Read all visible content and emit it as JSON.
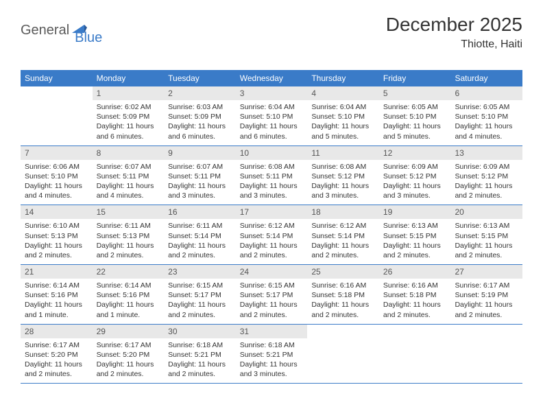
{
  "logo": {
    "text1": "General",
    "text2": "Blue"
  },
  "title": "December 2025",
  "location": "Thiotte, Haiti",
  "colors": {
    "header_bg": "#3a7bc8",
    "header_text": "#ffffff",
    "daynum_bg": "#e8e8e8",
    "daynum_text": "#555555",
    "body_text": "#333333",
    "rule": "#3a7bc8",
    "logo_gray": "#5a5a5a",
    "logo_blue": "#3a7bc8"
  },
  "day_names": [
    "Sunday",
    "Monday",
    "Tuesday",
    "Wednesday",
    "Thursday",
    "Friday",
    "Saturday"
  ],
  "first_day_index": 1,
  "days": [
    {
      "n": 1,
      "sunrise": "6:02 AM",
      "sunset": "5:09 PM",
      "daylight": "11 hours and 6 minutes."
    },
    {
      "n": 2,
      "sunrise": "6:03 AM",
      "sunset": "5:09 PM",
      "daylight": "11 hours and 6 minutes."
    },
    {
      "n": 3,
      "sunrise": "6:04 AM",
      "sunset": "5:10 PM",
      "daylight": "11 hours and 6 minutes."
    },
    {
      "n": 4,
      "sunrise": "6:04 AM",
      "sunset": "5:10 PM",
      "daylight": "11 hours and 5 minutes."
    },
    {
      "n": 5,
      "sunrise": "6:05 AM",
      "sunset": "5:10 PM",
      "daylight": "11 hours and 5 minutes."
    },
    {
      "n": 6,
      "sunrise": "6:05 AM",
      "sunset": "5:10 PM",
      "daylight": "11 hours and 4 minutes."
    },
    {
      "n": 7,
      "sunrise": "6:06 AM",
      "sunset": "5:10 PM",
      "daylight": "11 hours and 4 minutes."
    },
    {
      "n": 8,
      "sunrise": "6:07 AM",
      "sunset": "5:11 PM",
      "daylight": "11 hours and 4 minutes."
    },
    {
      "n": 9,
      "sunrise": "6:07 AM",
      "sunset": "5:11 PM",
      "daylight": "11 hours and 3 minutes."
    },
    {
      "n": 10,
      "sunrise": "6:08 AM",
      "sunset": "5:11 PM",
      "daylight": "11 hours and 3 minutes."
    },
    {
      "n": 11,
      "sunrise": "6:08 AM",
      "sunset": "5:12 PM",
      "daylight": "11 hours and 3 minutes."
    },
    {
      "n": 12,
      "sunrise": "6:09 AM",
      "sunset": "5:12 PM",
      "daylight": "11 hours and 3 minutes."
    },
    {
      "n": 13,
      "sunrise": "6:09 AM",
      "sunset": "5:12 PM",
      "daylight": "11 hours and 2 minutes."
    },
    {
      "n": 14,
      "sunrise": "6:10 AM",
      "sunset": "5:13 PM",
      "daylight": "11 hours and 2 minutes."
    },
    {
      "n": 15,
      "sunrise": "6:11 AM",
      "sunset": "5:13 PM",
      "daylight": "11 hours and 2 minutes."
    },
    {
      "n": 16,
      "sunrise": "6:11 AM",
      "sunset": "5:14 PM",
      "daylight": "11 hours and 2 minutes."
    },
    {
      "n": 17,
      "sunrise": "6:12 AM",
      "sunset": "5:14 PM",
      "daylight": "11 hours and 2 minutes."
    },
    {
      "n": 18,
      "sunrise": "6:12 AM",
      "sunset": "5:14 PM",
      "daylight": "11 hours and 2 minutes."
    },
    {
      "n": 19,
      "sunrise": "6:13 AM",
      "sunset": "5:15 PM",
      "daylight": "11 hours and 2 minutes."
    },
    {
      "n": 20,
      "sunrise": "6:13 AM",
      "sunset": "5:15 PM",
      "daylight": "11 hours and 2 minutes."
    },
    {
      "n": 21,
      "sunrise": "6:14 AM",
      "sunset": "5:16 PM",
      "daylight": "11 hours and 1 minute."
    },
    {
      "n": 22,
      "sunrise": "6:14 AM",
      "sunset": "5:16 PM",
      "daylight": "11 hours and 1 minute."
    },
    {
      "n": 23,
      "sunrise": "6:15 AM",
      "sunset": "5:17 PM",
      "daylight": "11 hours and 2 minutes."
    },
    {
      "n": 24,
      "sunrise": "6:15 AM",
      "sunset": "5:17 PM",
      "daylight": "11 hours and 2 minutes."
    },
    {
      "n": 25,
      "sunrise": "6:16 AM",
      "sunset": "5:18 PM",
      "daylight": "11 hours and 2 minutes."
    },
    {
      "n": 26,
      "sunrise": "6:16 AM",
      "sunset": "5:18 PM",
      "daylight": "11 hours and 2 minutes."
    },
    {
      "n": 27,
      "sunrise": "6:17 AM",
      "sunset": "5:19 PM",
      "daylight": "11 hours and 2 minutes."
    },
    {
      "n": 28,
      "sunrise": "6:17 AM",
      "sunset": "5:20 PM",
      "daylight": "11 hours and 2 minutes."
    },
    {
      "n": 29,
      "sunrise": "6:17 AM",
      "sunset": "5:20 PM",
      "daylight": "11 hours and 2 minutes."
    },
    {
      "n": 30,
      "sunrise": "6:18 AM",
      "sunset": "5:21 PM",
      "daylight": "11 hours and 2 minutes."
    },
    {
      "n": 31,
      "sunrise": "6:18 AM",
      "sunset": "5:21 PM",
      "daylight": "11 hours and 3 minutes."
    }
  ],
  "labels": {
    "sunrise": "Sunrise:",
    "sunset": "Sunset:",
    "daylight": "Daylight:"
  }
}
